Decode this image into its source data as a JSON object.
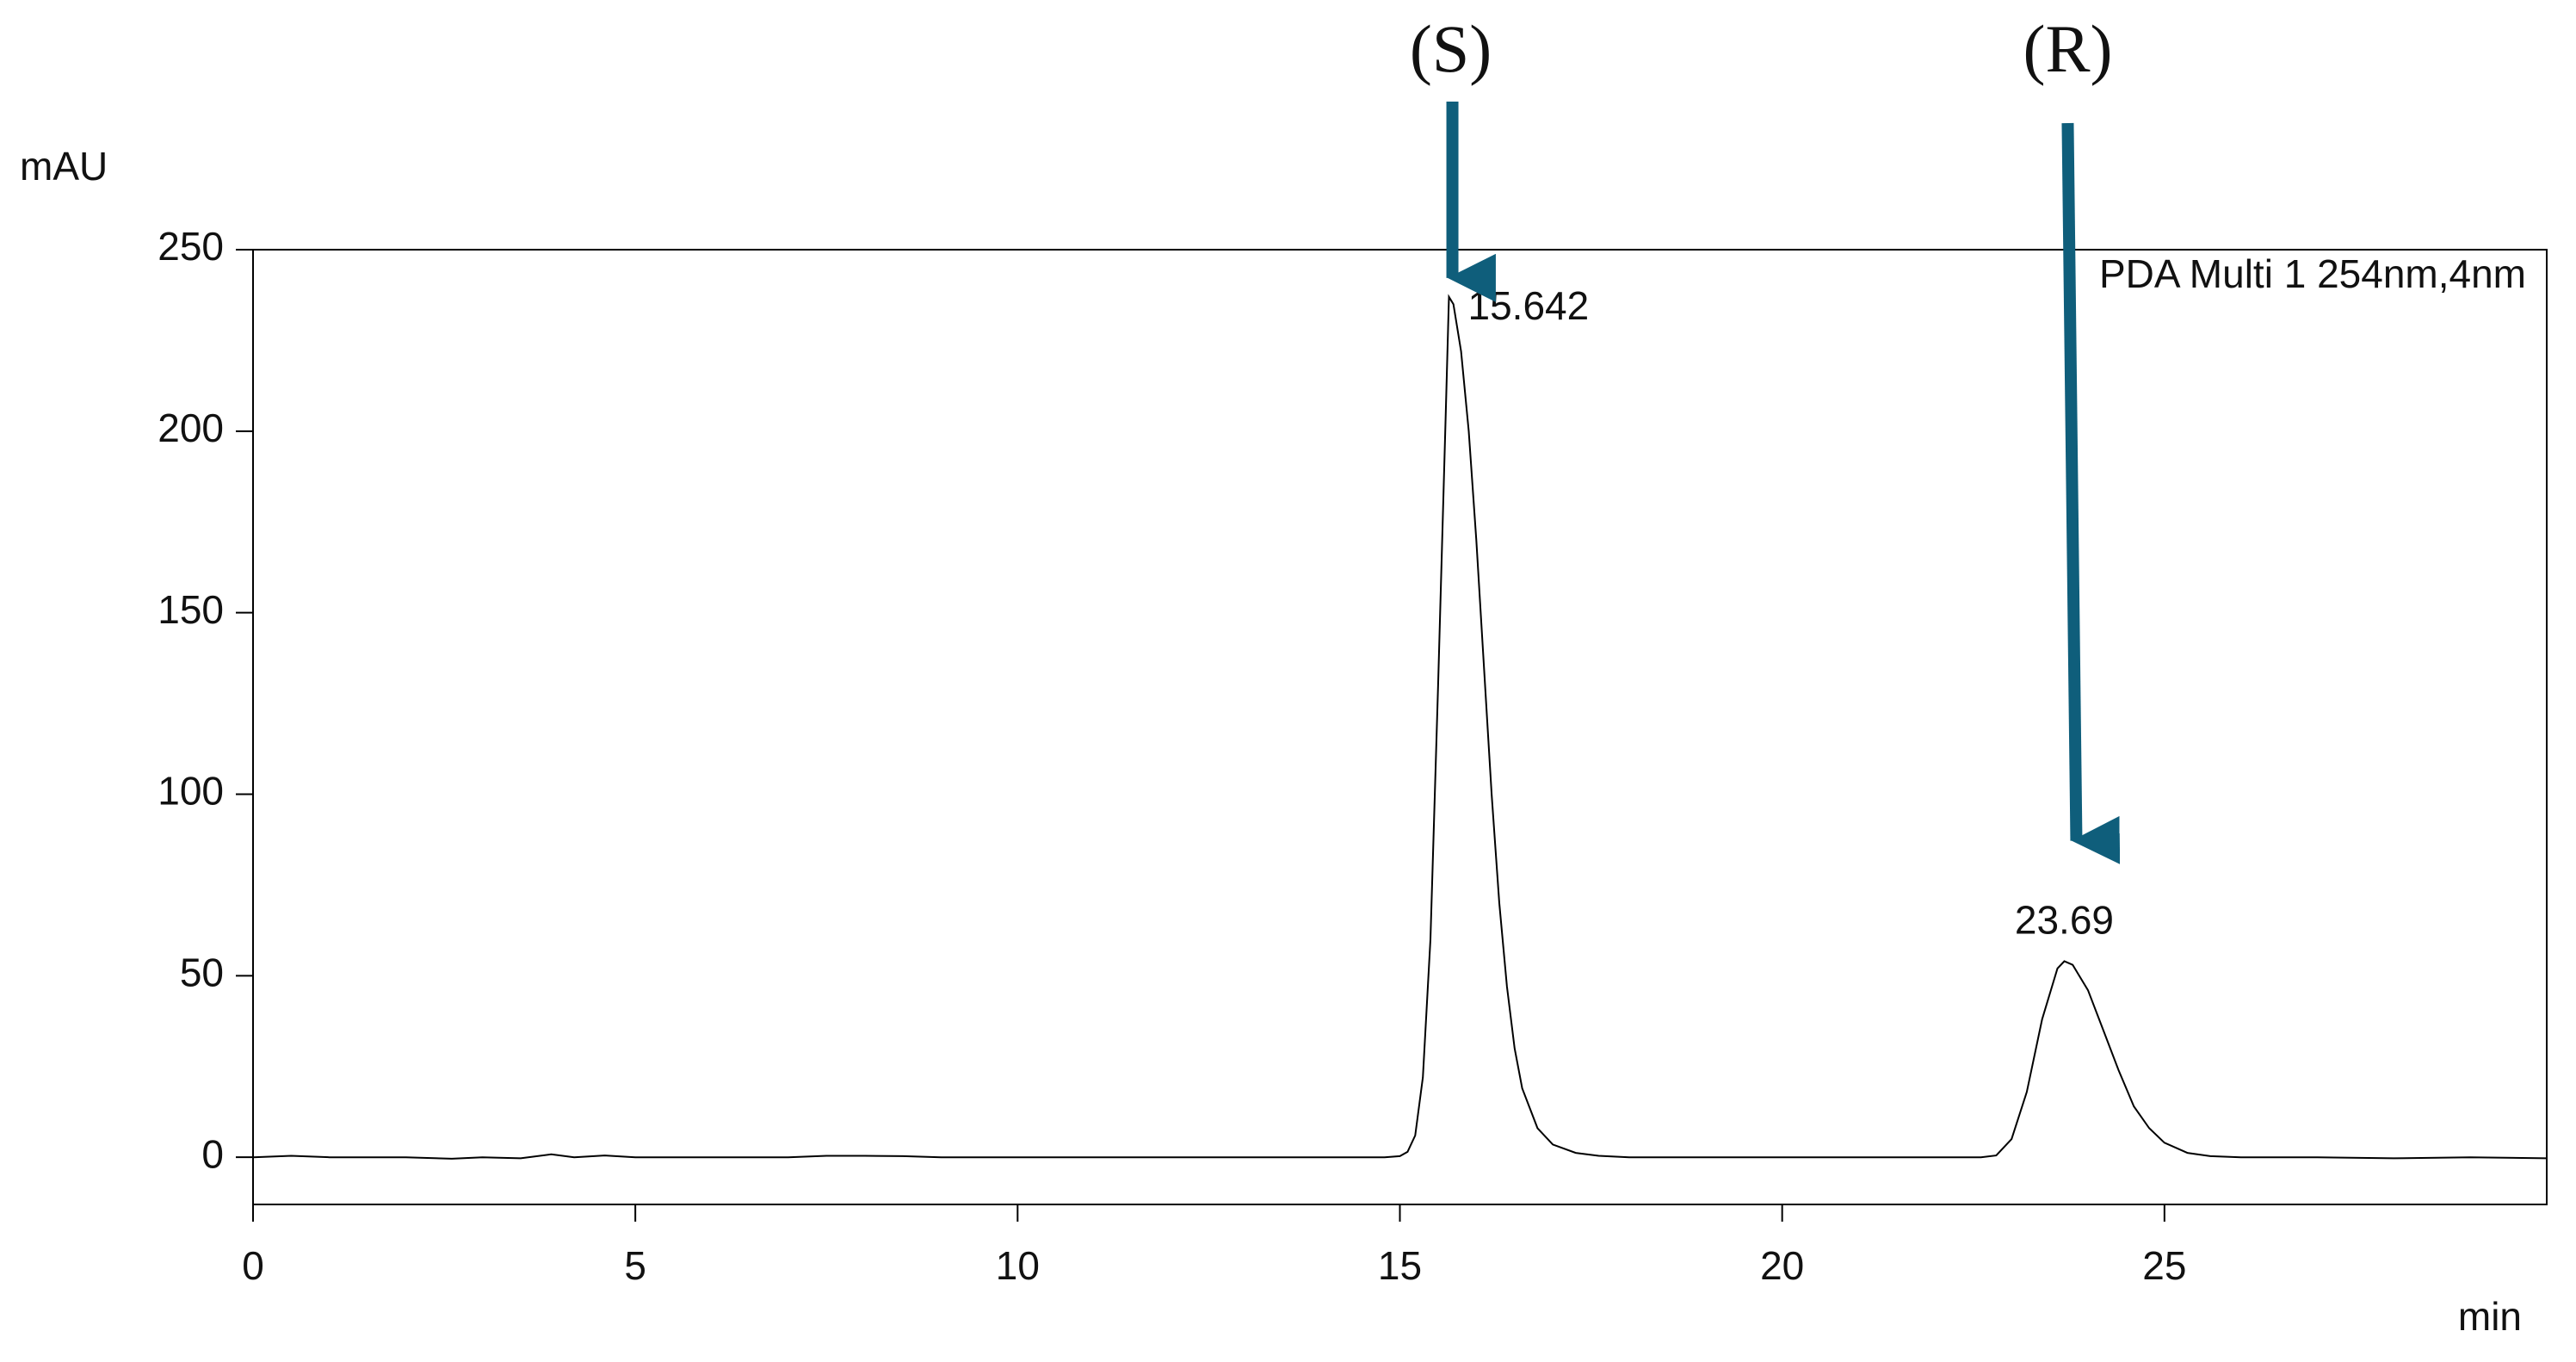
{
  "chart_data": {
    "type": "line",
    "y_label": "mAU",
    "x_label": "min",
    "x": [
      0,
      0.5,
      1,
      2,
      2.6,
      3,
      3.5,
      3.9,
      4.2,
      4.6,
      5,
      6,
      7,
      7.5,
      8,
      8.5,
      9,
      10,
      12,
      14,
      14.8,
      15.0,
      15.1,
      15.2,
      15.3,
      15.4,
      15.5,
      15.6,
      15.642,
      15.7,
      15.8,
      15.9,
      16.0,
      16.1,
      16.2,
      16.3,
      16.4,
      16.5,
      16.6,
      16.8,
      17.0,
      17.3,
      17.6,
      18,
      19,
      20,
      21,
      22,
      22.6,
      22.8,
      23.0,
      23.2,
      23.4,
      23.6,
      23.69,
      23.8,
      24.0,
      24.2,
      24.4,
      24.6,
      24.8,
      25.0,
      25.3,
      25.6,
      26,
      27,
      28,
      29,
      30
    ],
    "series": [
      {
        "name": "PDA Multi 1 254nm,4nm",
        "color": "#000000",
        "values": [
          0,
          0.4,
          0,
          0,
          -0.4,
          0,
          -0.3,
          0.8,
          0,
          0.5,
          0,
          0,
          0,
          0.4,
          0.4,
          0.3,
          0,
          0,
          0,
          0,
          0,
          0.3,
          1.5,
          6,
          22,
          60,
          130,
          205,
          237,
          235,
          222,
          200,
          170,
          135,
          100,
          70,
          47,
          30,
          19,
          8,
          3.5,
          1.2,
          0.4,
          0,
          0,
          0,
          0,
          0,
          0,
          0.5,
          5,
          18,
          38,
          52,
          54,
          53,
          46,
          35,
          24,
          14,
          8,
          4,
          1.2,
          0.3,
          0,
          0,
          -0.3,
          0,
          -0.3
        ]
      }
    ],
    "peaks": [
      {
        "name": "(S)",
        "x": 15.642,
        "y": 237
      },
      {
        "name": "(R)",
        "x": 23.69,
        "y": 54
      }
    ],
    "xlim": [
      0,
      30
    ],
    "ylim": [
      -13,
      250
    ],
    "xticks": [
      0,
      5,
      10,
      15,
      20,
      25
    ],
    "yticks": [
      0,
      50,
      100,
      150,
      200,
      250
    ],
    "arrow_color": "#0f5e7b"
  }
}
